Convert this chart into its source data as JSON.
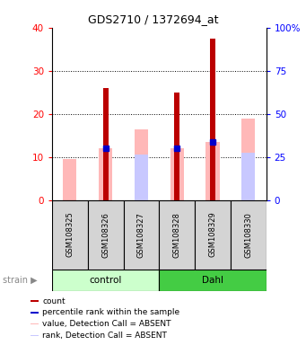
{
  "title": "GDS2710 / 1372694_at",
  "samples": [
    "GSM108325",
    "GSM108326",
    "GSM108327",
    "GSM108328",
    "GSM108329",
    "GSM108330"
  ],
  "red_count": [
    0,
    26,
    0,
    25,
    37.5,
    0
  ],
  "pink_value": [
    9.5,
    12,
    16.5,
    12,
    13.5,
    19
  ],
  "blue_rank": [
    0,
    12,
    0,
    12,
    13.5,
    0
  ],
  "lightblue_rank": [
    0,
    0,
    10.5,
    0,
    0,
    11
  ],
  "ylim": [
    0,
    40
  ],
  "y2lim": [
    0,
    100
  ],
  "yticks": [
    0,
    10,
    20,
    30,
    40
  ],
  "y2ticks": [
    0,
    25,
    50,
    75,
    100
  ],
  "y2labels": [
    "0",
    "25",
    "50",
    "75",
    "100%"
  ],
  "red_color": "#bb0000",
  "pink_color": "#ffb8b8",
  "blue_color": "#0000cc",
  "lightblue_color": "#c8c8ff",
  "control_light": "#ccffcc",
  "dahl_green": "#44cc44",
  "gray_box": "#d4d4d4"
}
